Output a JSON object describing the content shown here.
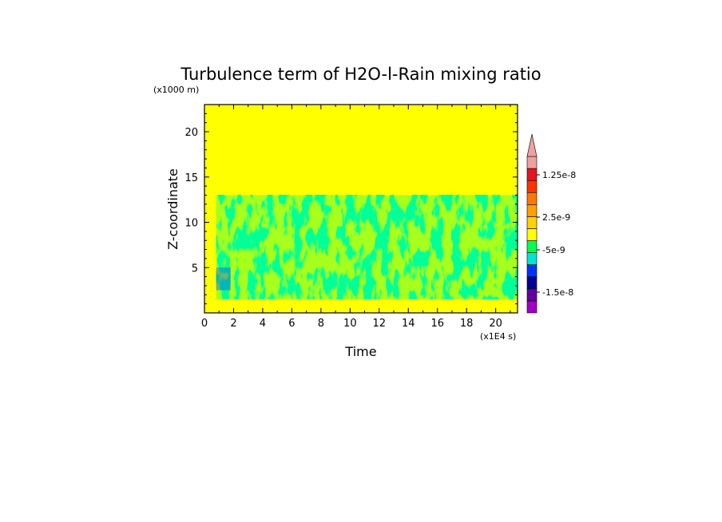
{
  "chart_data": {
    "type": "heatmap",
    "title": "Turbulence term of H2O-l-Rain mixing ratio",
    "xlabel": "Time",
    "ylabel": "Z-coordinate",
    "x_unit": "(x1E4 s)",
    "y_unit": "(x1000 m)",
    "xlim": [
      0,
      21.5
    ],
    "ylim": [
      0,
      23
    ],
    "x_ticks": [
      "0",
      "2",
      "4",
      "6",
      "8",
      "10",
      "12",
      "14",
      "16",
      "18",
      "20"
    ],
    "y_ticks": [
      "5",
      "10",
      "15",
      "20"
    ],
    "background_color": "#ffff00",
    "colorbar": {
      "colors": [
        "#a000c8",
        "#6400a0",
        "#000096",
        "#0032ff",
        "#00e6d2",
        "#00ff50",
        "#ffff00",
        "#ffd200",
        "#ffa000",
        "#ff7800",
        "#ff3200",
        "#e6141e",
        "#f0a0a0"
      ],
      "labels": [
        "1.25e-8",
        "2.5e-9",
        "-5e-9",
        "-1.5e-8"
      ],
      "extend_top": true
    },
    "dominant_regions": [
      {
        "color": "#00ff50",
        "x_range": [
          0.8,
          21.5
        ],
        "z_range": [
          1.5,
          13
        ],
        "description": "green band of negative values"
      },
      {
        "color": "#0032ff",
        "x_range": [
          0.8,
          1.8
        ],
        "z_range": [
          2.5,
          5
        ],
        "description": "blue patch near left bottom"
      }
    ]
  }
}
